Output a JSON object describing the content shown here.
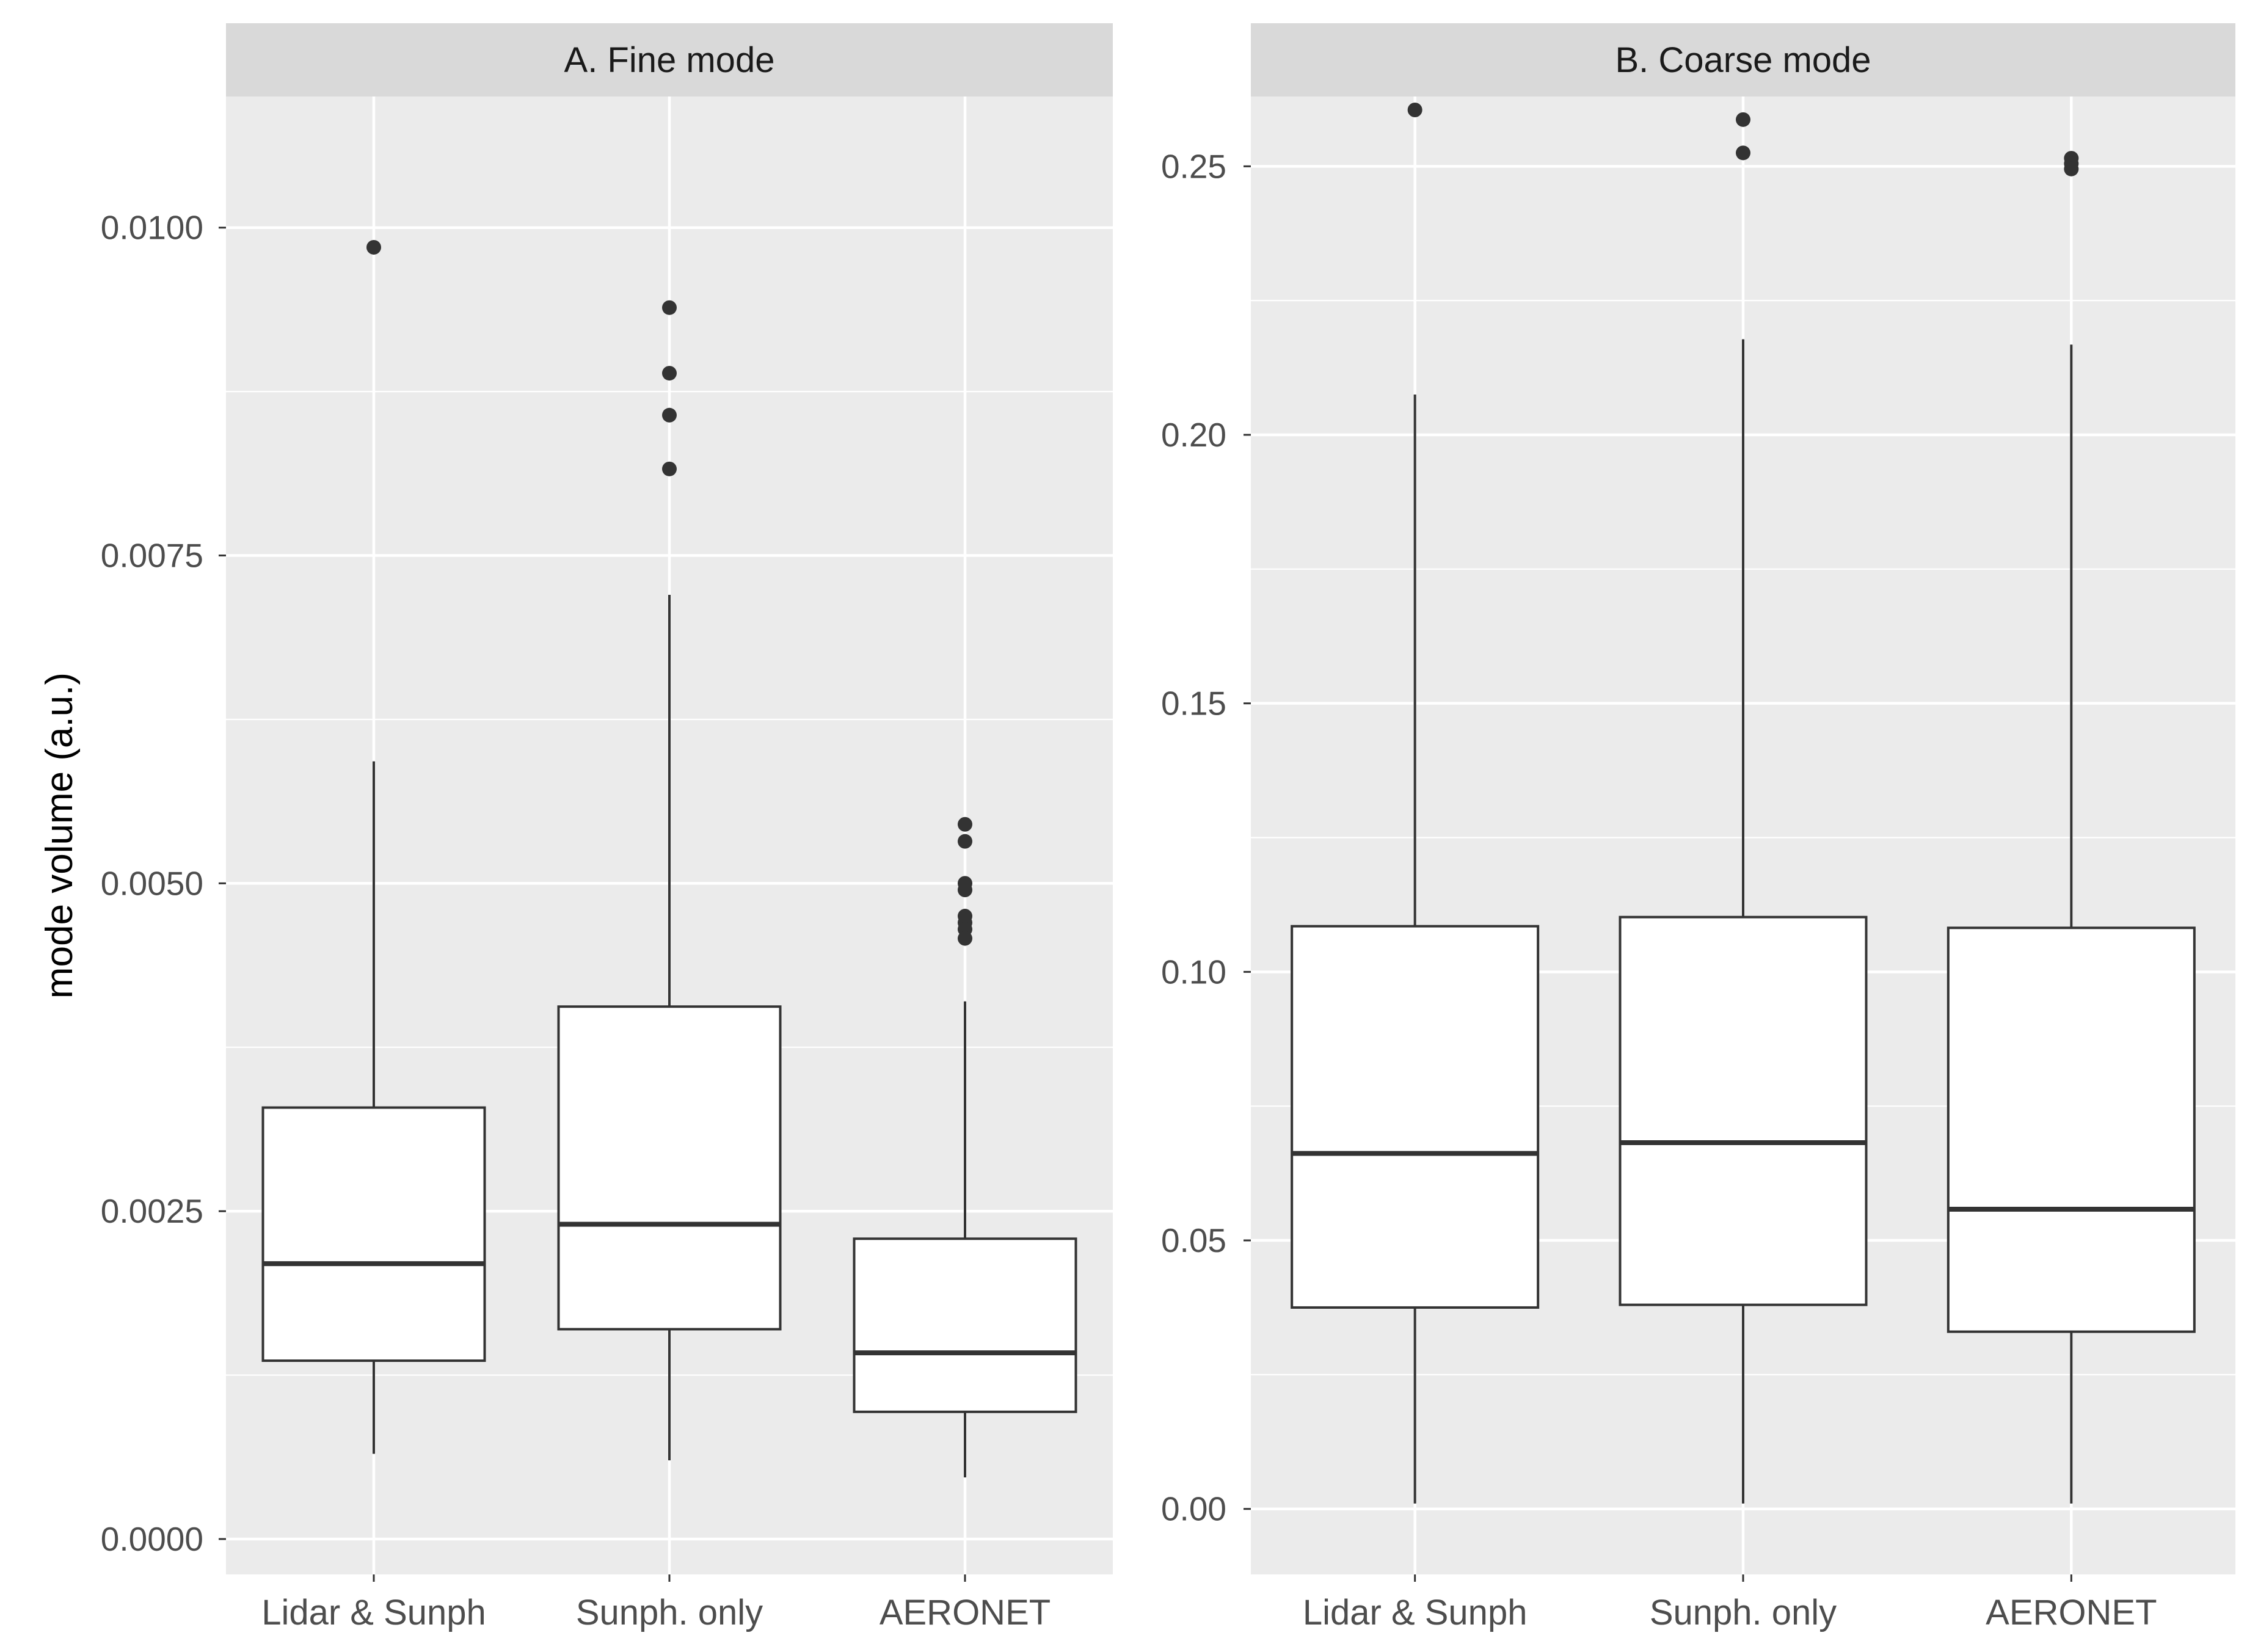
{
  "chart_data": {
    "type": "boxplot",
    "ylabel": "mode volume (a.u.)",
    "categories": [
      "Lidar & Sunph",
      "Sunph. only",
      "AERONET"
    ],
    "panels": [
      {
        "title": "A. Fine mode",
        "ylim": [
          -0.00027,
          0.011
        ],
        "yticks": [
          0.0,
          0.0025,
          0.005,
          0.0075,
          0.01
        ],
        "ytick_labels": [
          "0.0000",
          "0.0025",
          "0.0050",
          "0.0075",
          "0.0100"
        ],
        "boxes": [
          {
            "category": "Lidar & Sunph",
            "whisker_low": 0.00065,
            "q1": 0.00136,
            "median": 0.0021,
            "q3": 0.00329,
            "whisker_high": 0.00593,
            "outliers": [
              0.00985
            ]
          },
          {
            "category": "Sunph. only",
            "whisker_low": 0.0006,
            "q1": 0.0016,
            "median": 0.0024,
            "q3": 0.00406,
            "whisker_high": 0.0072,
            "outliers": [
              0.00939,
              0.00889,
              0.00857,
              0.00816
            ]
          },
          {
            "category": "AERONET",
            "whisker_low": 0.00047,
            "q1": 0.00097,
            "median": 0.00142,
            "q3": 0.00229,
            "whisker_high": 0.0041,
            "outliers": [
              0.00545,
              0.00532,
              0.005,
              0.00495,
              0.00475,
              0.0047,
              0.00465,
              0.00458
            ]
          }
        ]
      },
      {
        "title": "B. Coarse mode",
        "ylim": [
          -0.0122,
          0.263
        ],
        "yticks": [
          0.0,
          0.05,
          0.1,
          0.15,
          0.2,
          0.25
        ],
        "ytick_labels": [
          "0.00",
          "0.05",
          "0.10",
          "0.15",
          "0.20",
          "0.25"
        ],
        "boxes": [
          {
            "category": "Lidar & Sunph",
            "whisker_low": 0.001,
            "q1": 0.0375,
            "median": 0.0662,
            "q3": 0.1085,
            "whisker_high": 0.2075,
            "outliers": [
              0.2605
            ]
          },
          {
            "category": "Sunph. only",
            "whisker_low": 0.001,
            "q1": 0.038,
            "median": 0.0682,
            "q3": 0.1102,
            "whisker_high": 0.2178,
            "outliers": [
              0.2587,
              0.2525
            ]
          },
          {
            "category": "AERONET",
            "whisker_low": 0.001,
            "q1": 0.033,
            "median": 0.0558,
            "q3": 0.1082,
            "whisker_high": 0.2168,
            "outliers": [
              0.2515,
              0.2505,
              0.2495
            ]
          }
        ]
      }
    ]
  }
}
